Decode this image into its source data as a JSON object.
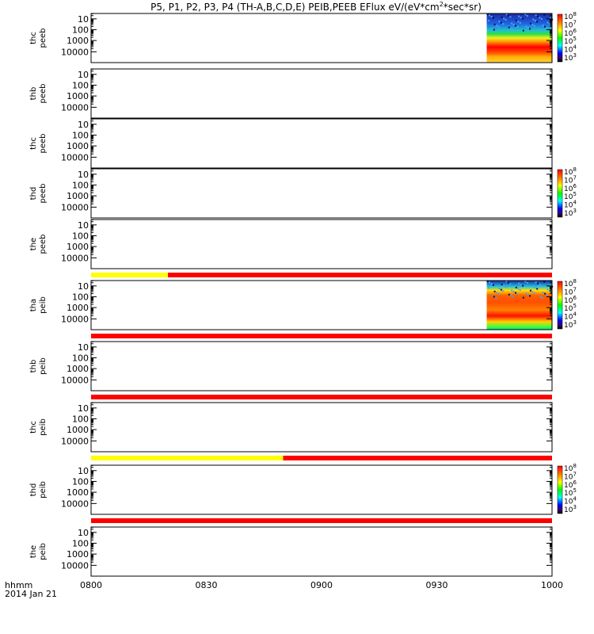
{
  "title": "P5, P1, P2, P3, P4 (TH-A,B,C,D,E) PEIB,PEEB EFlux eV/(eV*cm",
  "title_sup": "2",
  "title_tail": "*sec*sr)",
  "colors": {
    "mode_fast": "#ff0000",
    "mode_slow": "#ffff00",
    "frame": "#000000"
  },
  "chart_data": {
    "type": "heatmap",
    "x_axis": {
      "ticks": [
        "0800",
        "0830",
        "0900",
        "0930",
        "1000"
      ],
      "range": [
        "08:00",
        "10:00"
      ],
      "label_line1": "hhmm",
      "label_line2": "2014 Jan 21"
    },
    "y_scale": "log",
    "y_ticks": [
      "10",
      "100",
      "1000",
      "10000"
    ],
    "colorbar_scale": "log",
    "panels": [
      {
        "ylabel": [
          "thc",
          "peeb"
        ],
        "has_data": true,
        "data_start": "09:43",
        "data_end": "10:00",
        "colorbar": [
          "10^8",
          "10^7",
          "10^6",
          "10^5",
          "10^4",
          "10^3"
        ]
      },
      {
        "ylabel": [
          "thb",
          "peeb"
        ],
        "has_data": false
      },
      {
        "ylabel": [
          "thc",
          "peeb"
        ],
        "has_data": false
      },
      {
        "ylabel": [
          "thd",
          "peeb"
        ],
        "has_data": false,
        "colorbar": [
          "10^8",
          "10^7",
          "10^6",
          "10^5",
          "10^4",
          "10^3"
        ]
      },
      {
        "ylabel": [
          "the",
          "peeb"
        ],
        "has_data": false
      },
      {
        "ylabel": [
          "tha",
          "peib"
        ],
        "has_data": true,
        "data_start": "09:43",
        "data_end": "10:00",
        "colorbar": [
          "10^8",
          "10^7",
          "10^6",
          "10^5",
          "10^4",
          "10^3"
        ]
      },
      {
        "ylabel": [
          "thb",
          "peib"
        ],
        "has_data": false
      },
      {
        "ylabel": [
          "thc",
          "peib"
        ],
        "has_data": false
      },
      {
        "ylabel": [
          "thd",
          "peib"
        ],
        "has_data": false,
        "colorbar": [
          "10^8",
          "10^7",
          "10^6",
          "10^5",
          "10^4",
          "10^3"
        ]
      },
      {
        "ylabel": [
          "the",
          "peib"
        ],
        "has_data": false
      }
    ],
    "mode_bars": [
      {
        "after_panel": 4,
        "segments": [
          {
            "start": "08:00",
            "end": "08:20",
            "mode": "slow"
          },
          {
            "start": "08:20",
            "end": "10:00",
            "mode": "fast"
          }
        ]
      },
      {
        "after_panel": 5,
        "segments": [
          {
            "start": "08:00",
            "end": "10:00",
            "mode": "fast"
          }
        ]
      },
      {
        "after_panel": 6,
        "segments": [
          {
            "start": "08:00",
            "end": "10:00",
            "mode": "fast"
          }
        ]
      },
      {
        "after_panel": 7,
        "segments": [
          {
            "start": "08:00",
            "end": "08:50",
            "mode": "slow"
          },
          {
            "start": "08:50",
            "end": "10:00",
            "mode": "fast"
          }
        ]
      },
      {
        "after_panel": 8,
        "segments": [
          {
            "start": "08:00",
            "end": "10:00",
            "mode": "fast"
          }
        ]
      }
    ]
  }
}
